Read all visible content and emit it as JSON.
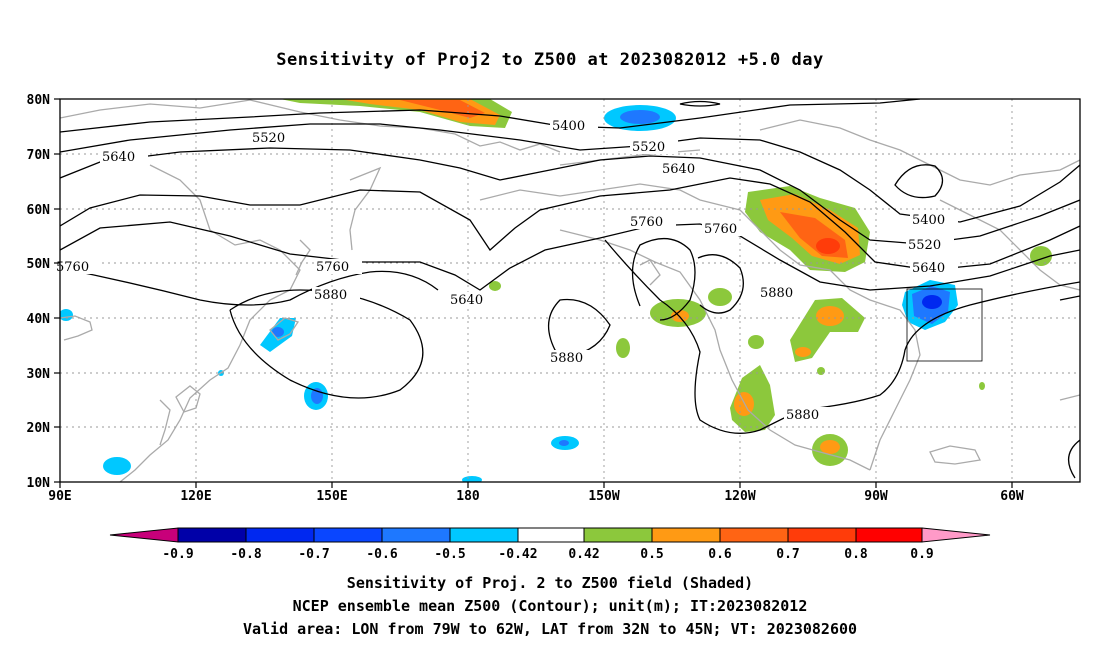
{
  "title": "Sensitivity of Proj2 to Z500 at 2023082012 +5.0 day",
  "lat_labels": [
    "80N",
    "70N",
    "60N",
    "50N",
    "40N",
    "30N",
    "20N",
    "10N"
  ],
  "lon_labels": [
    "90E",
    "120E",
    "150E",
    "180",
    "150W",
    "120W",
    "90W",
    "60W"
  ],
  "contour_labels": [
    "5400",
    "5520",
    "5640",
    "5760",
    "5880"
  ],
  "colorbar": {
    "labels": [
      "-0.9",
      "-0.8",
      "-0.7",
      "-0.6",
      "-0.5",
      "-0.42",
      "0.42",
      "0.5",
      "0.6",
      "0.7",
      "0.8",
      "0.9"
    ],
    "colors": [
      "#c8007a",
      "#0000a8",
      "#0028f0",
      "#0a46ff",
      "#1e78ff",
      "#00c8ff",
      "#ffffff",
      "#8cc83c",
      "#ff9a14",
      "#ff6414",
      "#ff3c0a",
      "#ff0000",
      "#ff9ac8"
    ]
  },
  "captions": {
    "line1": "Sensitivity of Proj. 2 to Z500 field (Shaded)",
    "line2": "NCEP ensemble mean Z500 (Contour); unit(m); IT:2023082012",
    "line3": "Valid area: LON from 79W to 62W, LAT from 32N to 45N; VT: 2023082600"
  }
}
